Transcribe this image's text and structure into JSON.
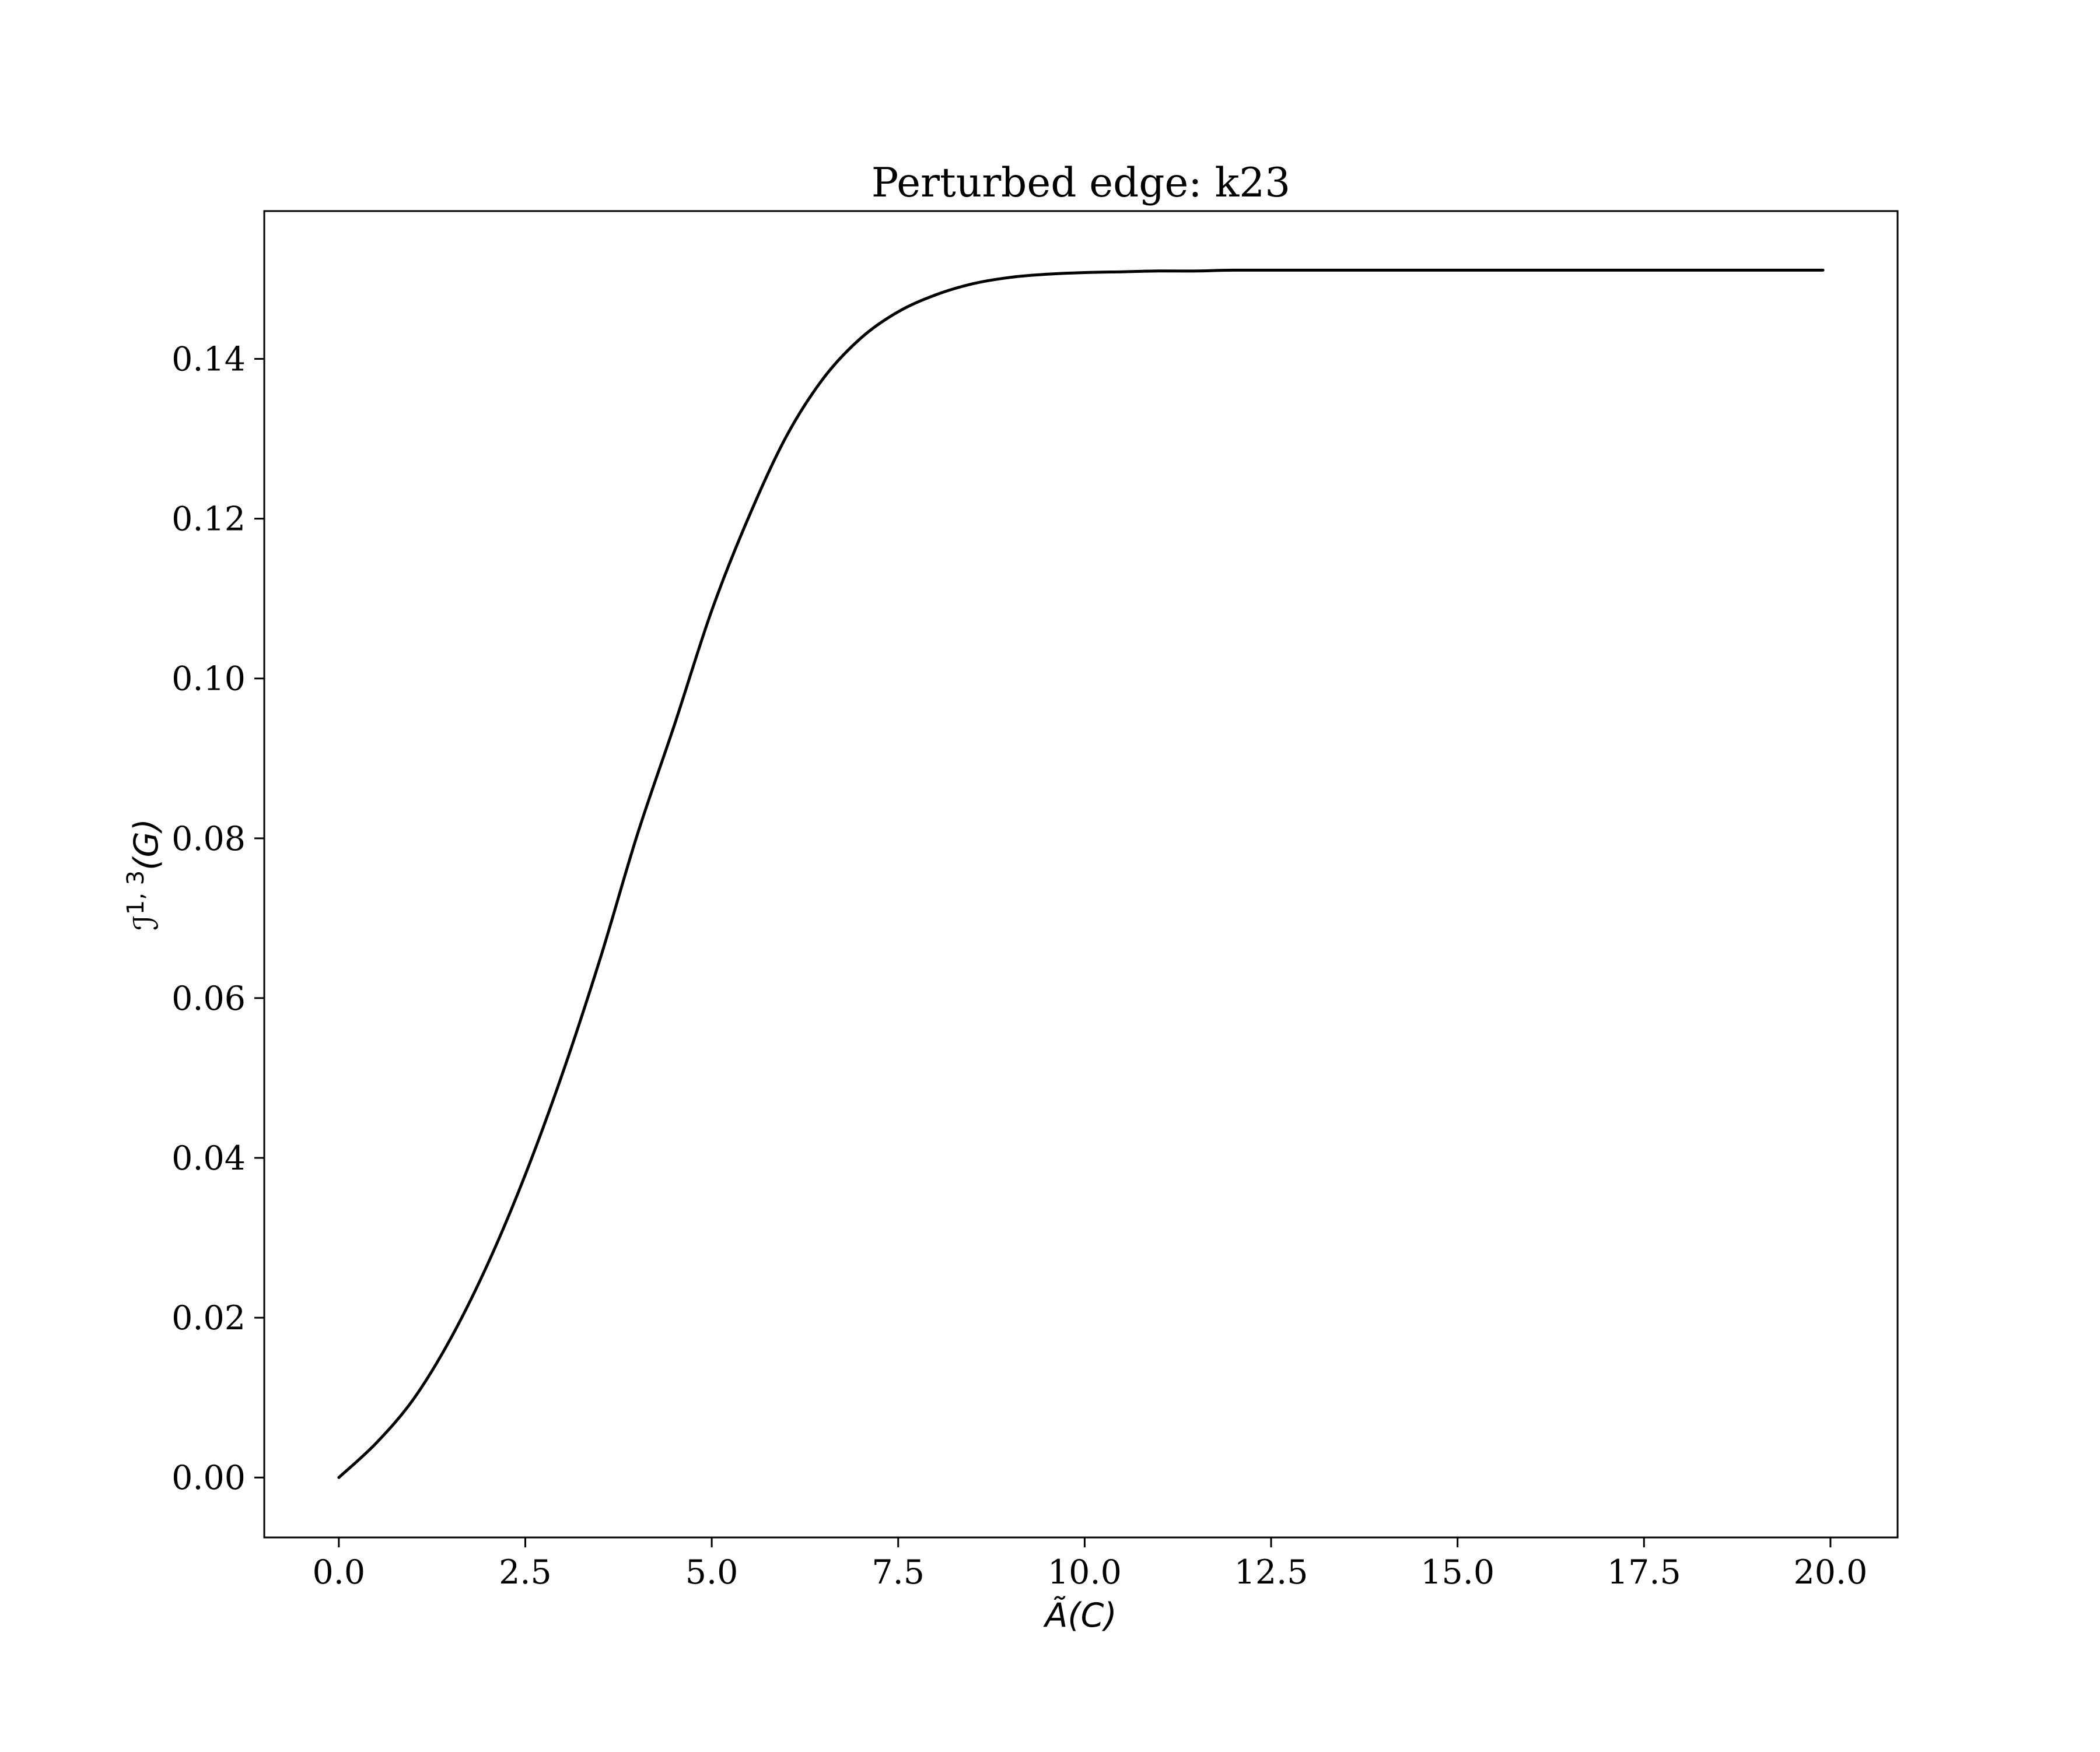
{
  "chart_data": {
    "type": "line",
    "title": "Perturbed edge: k23",
    "xlabel": "Ã(C)",
    "ylabel": "ℐ¹˒³(G)",
    "xlabel_parts": {
      "main": "Ã(C)"
    },
    "ylabel_parts": {
      "base": "ℐ",
      "sup": "1, 3",
      "tail": "(G)"
    },
    "xlim": [
      -1.0,
      20.9
    ],
    "ylim": [
      -0.0075,
      0.1585
    ],
    "xticks": [
      0.0,
      2.5,
      5.0,
      7.5,
      10.0,
      12.5,
      15.0,
      17.5,
      20.0
    ],
    "xtick_labels": [
      "0.0",
      "2.5",
      "5.0",
      "7.5",
      "10.0",
      "12.5",
      "15.0",
      "17.5",
      "20.0"
    ],
    "yticks": [
      0.0,
      0.02,
      0.04,
      0.06,
      0.08,
      0.1,
      0.12,
      0.14
    ],
    "ytick_labels": [
      "0.00",
      "0.02",
      "0.04",
      "0.06",
      "0.08",
      "0.10",
      "0.12",
      "0.14"
    ],
    "grid": false,
    "line_color": "#000000",
    "series": [
      {
        "x": [
          0.0,
          0.5,
          1.0,
          1.5,
          2.0,
          2.5,
          3.0,
          3.5,
          4.0,
          4.5,
          5.0,
          5.5,
          6.0,
          6.5,
          7.0,
          7.5,
          8.0,
          8.5,
          9.0,
          9.5,
          10.0,
          10.5,
          11.0,
          11.5,
          12.0,
          13.0,
          14.0,
          15.0,
          16.0,
          17.0,
          18.0,
          19.0,
          19.9
        ],
        "y": [
          0.0,
          0.0043,
          0.0098,
          0.0174,
          0.0268,
          0.0379,
          0.0506,
          0.0648,
          0.0804,
          0.0942,
          0.1085,
          0.1203,
          0.1303,
          0.1376,
          0.1426,
          0.1459,
          0.148,
          0.1494,
          0.1502,
          0.1506,
          0.1508,
          0.1509,
          0.151,
          0.151,
          0.1511,
          0.1511,
          0.1511,
          0.1511,
          0.1511,
          0.1511,
          0.1511,
          0.1511,
          0.1511
        ]
      }
    ]
  }
}
